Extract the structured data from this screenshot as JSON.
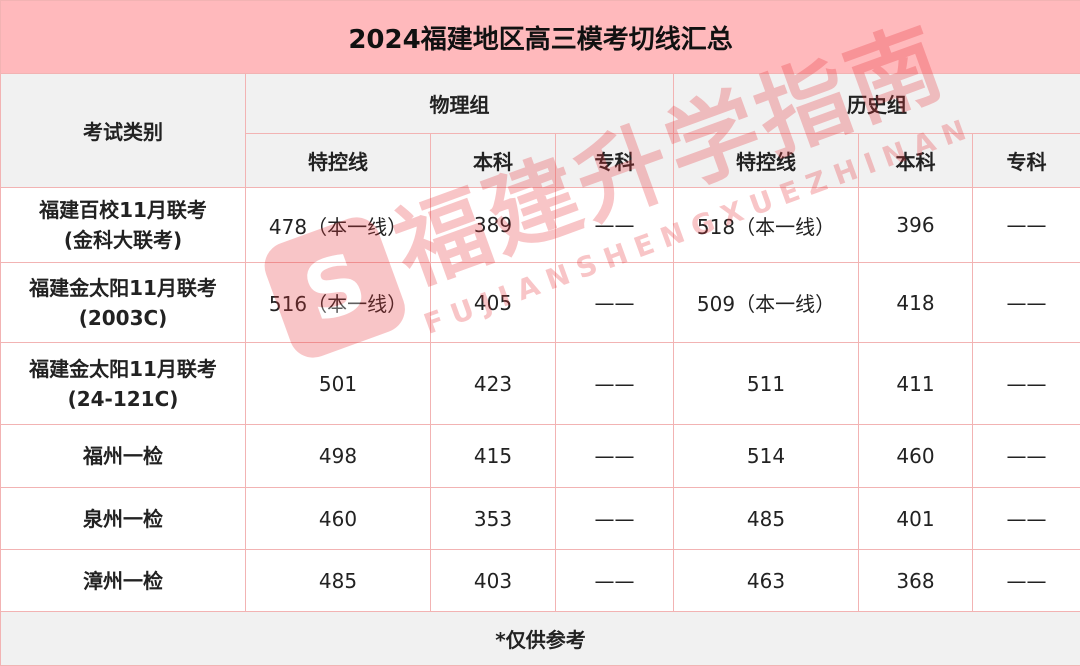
{
  "title": "2024福建地区高三模考切线汇总",
  "header": {
    "category": "考试类别",
    "physics": "物理组",
    "history": "历史组",
    "sub": [
      "特控线",
      "本科",
      "专科",
      "特控线",
      "本科",
      "专科"
    ]
  },
  "rows": [
    {
      "name": [
        "福建百校11月联考",
        "(金科大联考)"
      ],
      "values": [
        "478（本一线）",
        "389",
        "——",
        "518（本一线）",
        "396",
        "——"
      ]
    },
    {
      "name": [
        "福建金太阳11月联考",
        "(2003C)"
      ],
      "values": [
        "516（本一线）",
        "405",
        "——",
        "509（本一线）",
        "418",
        "——"
      ]
    },
    {
      "name": [
        "福建金太阳11月联考",
        "(24-121C)"
      ],
      "values": [
        "501",
        "423",
        "——",
        "511",
        "411",
        "——"
      ]
    },
    {
      "name": [
        "福州一检",
        ""
      ],
      "values": [
        "498",
        "415",
        "——",
        "514",
        "460",
        "——"
      ]
    },
    {
      "name": [
        "泉州一检",
        ""
      ],
      "values": [
        "460",
        "353",
        "——",
        "485",
        "401",
        "——"
      ]
    },
    {
      "name": [
        "漳州一检",
        ""
      ],
      "values": [
        "485",
        "403",
        "——",
        "463",
        "368",
        "——"
      ]
    }
  ],
  "footer": "*仅供参考",
  "watermark": {
    "cn": "福建升学指南",
    "en": "FUJIANSHENGXUEZHINAN",
    "color": "#e8343a"
  }
}
